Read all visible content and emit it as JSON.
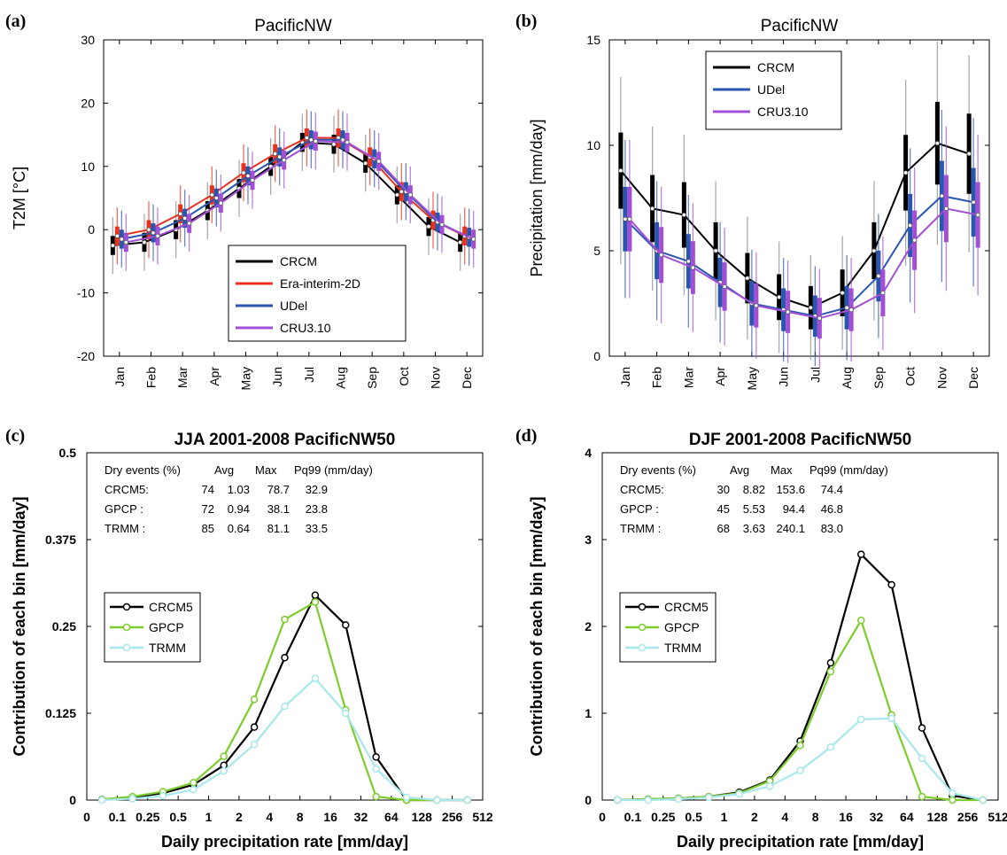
{
  "panels": {
    "a": {
      "tag": "(a)"
    },
    "b": {
      "tag": "(b)"
    },
    "c": {
      "tag": "(c)"
    },
    "d": {
      "tag": "(d)"
    }
  },
  "chart_data": [
    {
      "id": "a",
      "type": "line",
      "title": "PacificNW",
      "ylabel": "T2M [°C]",
      "ylim": [
        -20,
        30
      ],
      "yticks": [
        -20,
        -10,
        0,
        10,
        20,
        30
      ],
      "categories": [
        "Jan",
        "Feb",
        "Mar",
        "Apr",
        "May",
        "Jun",
        "Jul",
        "Aug",
        "Sep",
        "Oct",
        "Nov",
        "Dec"
      ],
      "legend_position": "lower-right",
      "series": [
        {
          "name": "CRCM",
          "color": "#000000",
          "values": [
            -2.5,
            -2.0,
            0.0,
            3.0,
            6.5,
            10.0,
            13.8,
            13.5,
            10.5,
            5.5,
            0.5,
            -2.0
          ]
        },
        {
          "name": "Era-interim-2D",
          "color": "#e8321e",
          "values": [
            -1.0,
            0.0,
            2.5,
            5.5,
            9.0,
            12.0,
            14.5,
            14.5,
            11.5,
            6.0,
            1.5,
            -1.0
          ]
        },
        {
          "name": "UDel",
          "color": "#2a56b0",
          "values": [
            -1.5,
            -0.5,
            1.8,
            5.0,
            8.5,
            11.5,
            14.2,
            14.2,
            11.2,
            6.0,
            1.2,
            -1.2
          ]
        },
        {
          "name": "CRU3.10",
          "color": "#a24fd6",
          "values": [
            -2.0,
            -1.0,
            1.0,
            4.2,
            7.8,
            11.0,
            14.0,
            13.8,
            10.8,
            5.5,
            0.8,
            -1.5
          ]
        }
      ]
    },
    {
      "id": "b",
      "type": "line",
      "title": "PacificNW",
      "ylabel": "Precipitation [mm/day]",
      "ylim": [
        0,
        15
      ],
      "yticks": [
        0,
        5,
        10,
        15
      ],
      "categories": [
        "Jan",
        "Feb",
        "Mar",
        "Apr",
        "May",
        "Jun",
        "Jul",
        "Aug",
        "Sep",
        "Oct",
        "Nov",
        "Dec"
      ],
      "legend_position": "top-center",
      "series": [
        {
          "name": "CRCM",
          "color": "#000000",
          "values": [
            8.8,
            7.0,
            6.7,
            5.0,
            3.7,
            2.8,
            2.3,
            3.0,
            5.0,
            8.7,
            10.1,
            9.6
          ]
        },
        {
          "name": "UDel",
          "color": "#2a56b0",
          "values": [
            6.5,
            5.0,
            4.5,
            3.5,
            2.5,
            2.2,
            1.9,
            2.3,
            3.8,
            6.2,
            7.6,
            7.3
          ]
        },
        {
          "name": "CRU3.10",
          "color": "#a24fd6",
          "values": [
            6.5,
            4.8,
            4.2,
            3.3,
            2.4,
            2.1,
            1.8,
            2.2,
            3.0,
            5.5,
            7.0,
            6.7
          ]
        }
      ]
    },
    {
      "id": "c",
      "type": "line",
      "title": "JJA 2001-2008 PacificNW50",
      "xlabel": "Daily precipitation rate [mm/day]",
      "ylabel": "Contribution of each bin [mm/day]",
      "ylim": [
        0,
        0.5
      ],
      "yticks": [
        "0",
        "0.125",
        "0.25",
        "0.375",
        "0.5"
      ],
      "yticks_values": [
        0,
        0.125,
        0.25,
        0.375,
        0.5
      ],
      "xticks": [
        "0",
        "0.1",
        "0.25",
        "0.5",
        "1",
        "2",
        "4",
        "8",
        "16",
        "32",
        "64",
        "128",
        "256",
        "512"
      ],
      "legend_position": "mid-left",
      "stats_table": {
        "header": [
          "Dry events (%)",
          "Avg",
          "Max",
          "Pq99 (mm/day)"
        ],
        "rows": [
          [
            "CRCM5:",
            "74",
            "1.03",
            "78.7",
            "32.9"
          ],
          [
            "GPCP :",
            "72",
            "0.94",
            "38.1",
            "23.8"
          ],
          [
            "TRMM :",
            "85",
            "0.64",
            "81.1",
            "33.5"
          ]
        ]
      },
      "x_bin_index": [
        0.5,
        1.5,
        2.5,
        3.5,
        4.5,
        5.5,
        6.5,
        7.5,
        8.5,
        9.5,
        10.5,
        11.5,
        12.5
      ],
      "series": [
        {
          "name": "CRCM5",
          "color": "#000000",
          "values": [
            0.001,
            0.004,
            0.01,
            0.022,
            0.05,
            0.105,
            0.205,
            0.295,
            0.252,
            0.062,
            0.0,
            0.0,
            0.0
          ]
        },
        {
          "name": "GPCP",
          "color": "#7ccd2c",
          "values": [
            0.001,
            0.005,
            0.012,
            0.025,
            0.063,
            0.145,
            0.26,
            0.285,
            0.13,
            0.005,
            0.0,
            0.0,
            0.0
          ]
        },
        {
          "name": "TRMM",
          "color": "#a8e8ec",
          "values": [
            0.0,
            0.002,
            0.006,
            0.015,
            0.042,
            0.08,
            0.135,
            0.175,
            0.125,
            0.045,
            0.004,
            0.0,
            0.0
          ]
        }
      ]
    },
    {
      "id": "d",
      "type": "line",
      "title": "DJF 2001-2008 PacificNW50",
      "xlabel": "Daily precipitation rate [mm/day]",
      "ylabel": "Contribution of each bin [mm/day]",
      "ylim": [
        0,
        4
      ],
      "yticks": [
        "0",
        "1",
        "2",
        "3",
        "4"
      ],
      "yticks_values": [
        0,
        1,
        2,
        3,
        4
      ],
      "xticks": [
        "0",
        "0.1",
        "0.25",
        "0.5",
        "1",
        "2",
        "4",
        "8",
        "16",
        "32",
        "64",
        "128",
        "256",
        "512"
      ],
      "legend_position": "mid-left",
      "stats_table": {
        "header": [
          "Dry events (%)",
          "Avg",
          "Max",
          "Pq99 (mm/day)"
        ],
        "rows": [
          [
            "CRCM5:",
            "30",
            "8.82",
            "153.6",
            "74.4"
          ],
          [
            "GPCP :",
            "45",
            "5.53",
            "94.4",
            "46.8"
          ],
          [
            "TRMM :",
            "68",
            "3.63",
            "240.1",
            "83.0"
          ]
        ]
      },
      "x_bin_index": [
        0.5,
        1.5,
        2.5,
        3.5,
        4.5,
        5.5,
        6.5,
        7.5,
        8.5,
        9.5,
        10.5,
        11.5,
        12.5
      ],
      "series": [
        {
          "name": "CRCM5",
          "color": "#000000",
          "values": [
            0.0,
            0.01,
            0.02,
            0.04,
            0.09,
            0.23,
            0.68,
            1.58,
            2.83,
            2.48,
            0.83,
            0.05,
            0.0
          ]
        },
        {
          "name": "GPCP",
          "color": "#7ccd2c",
          "values": [
            0.0,
            0.01,
            0.02,
            0.04,
            0.08,
            0.22,
            0.63,
            1.48,
            2.07,
            0.98,
            0.04,
            0.0,
            0.0
          ]
        },
        {
          "name": "TRMM",
          "color": "#a8e8ec",
          "values": [
            0.0,
            0.0,
            0.01,
            0.03,
            0.07,
            0.16,
            0.34,
            0.61,
            0.93,
            0.94,
            0.48,
            0.08,
            0.0
          ]
        }
      ]
    }
  ]
}
